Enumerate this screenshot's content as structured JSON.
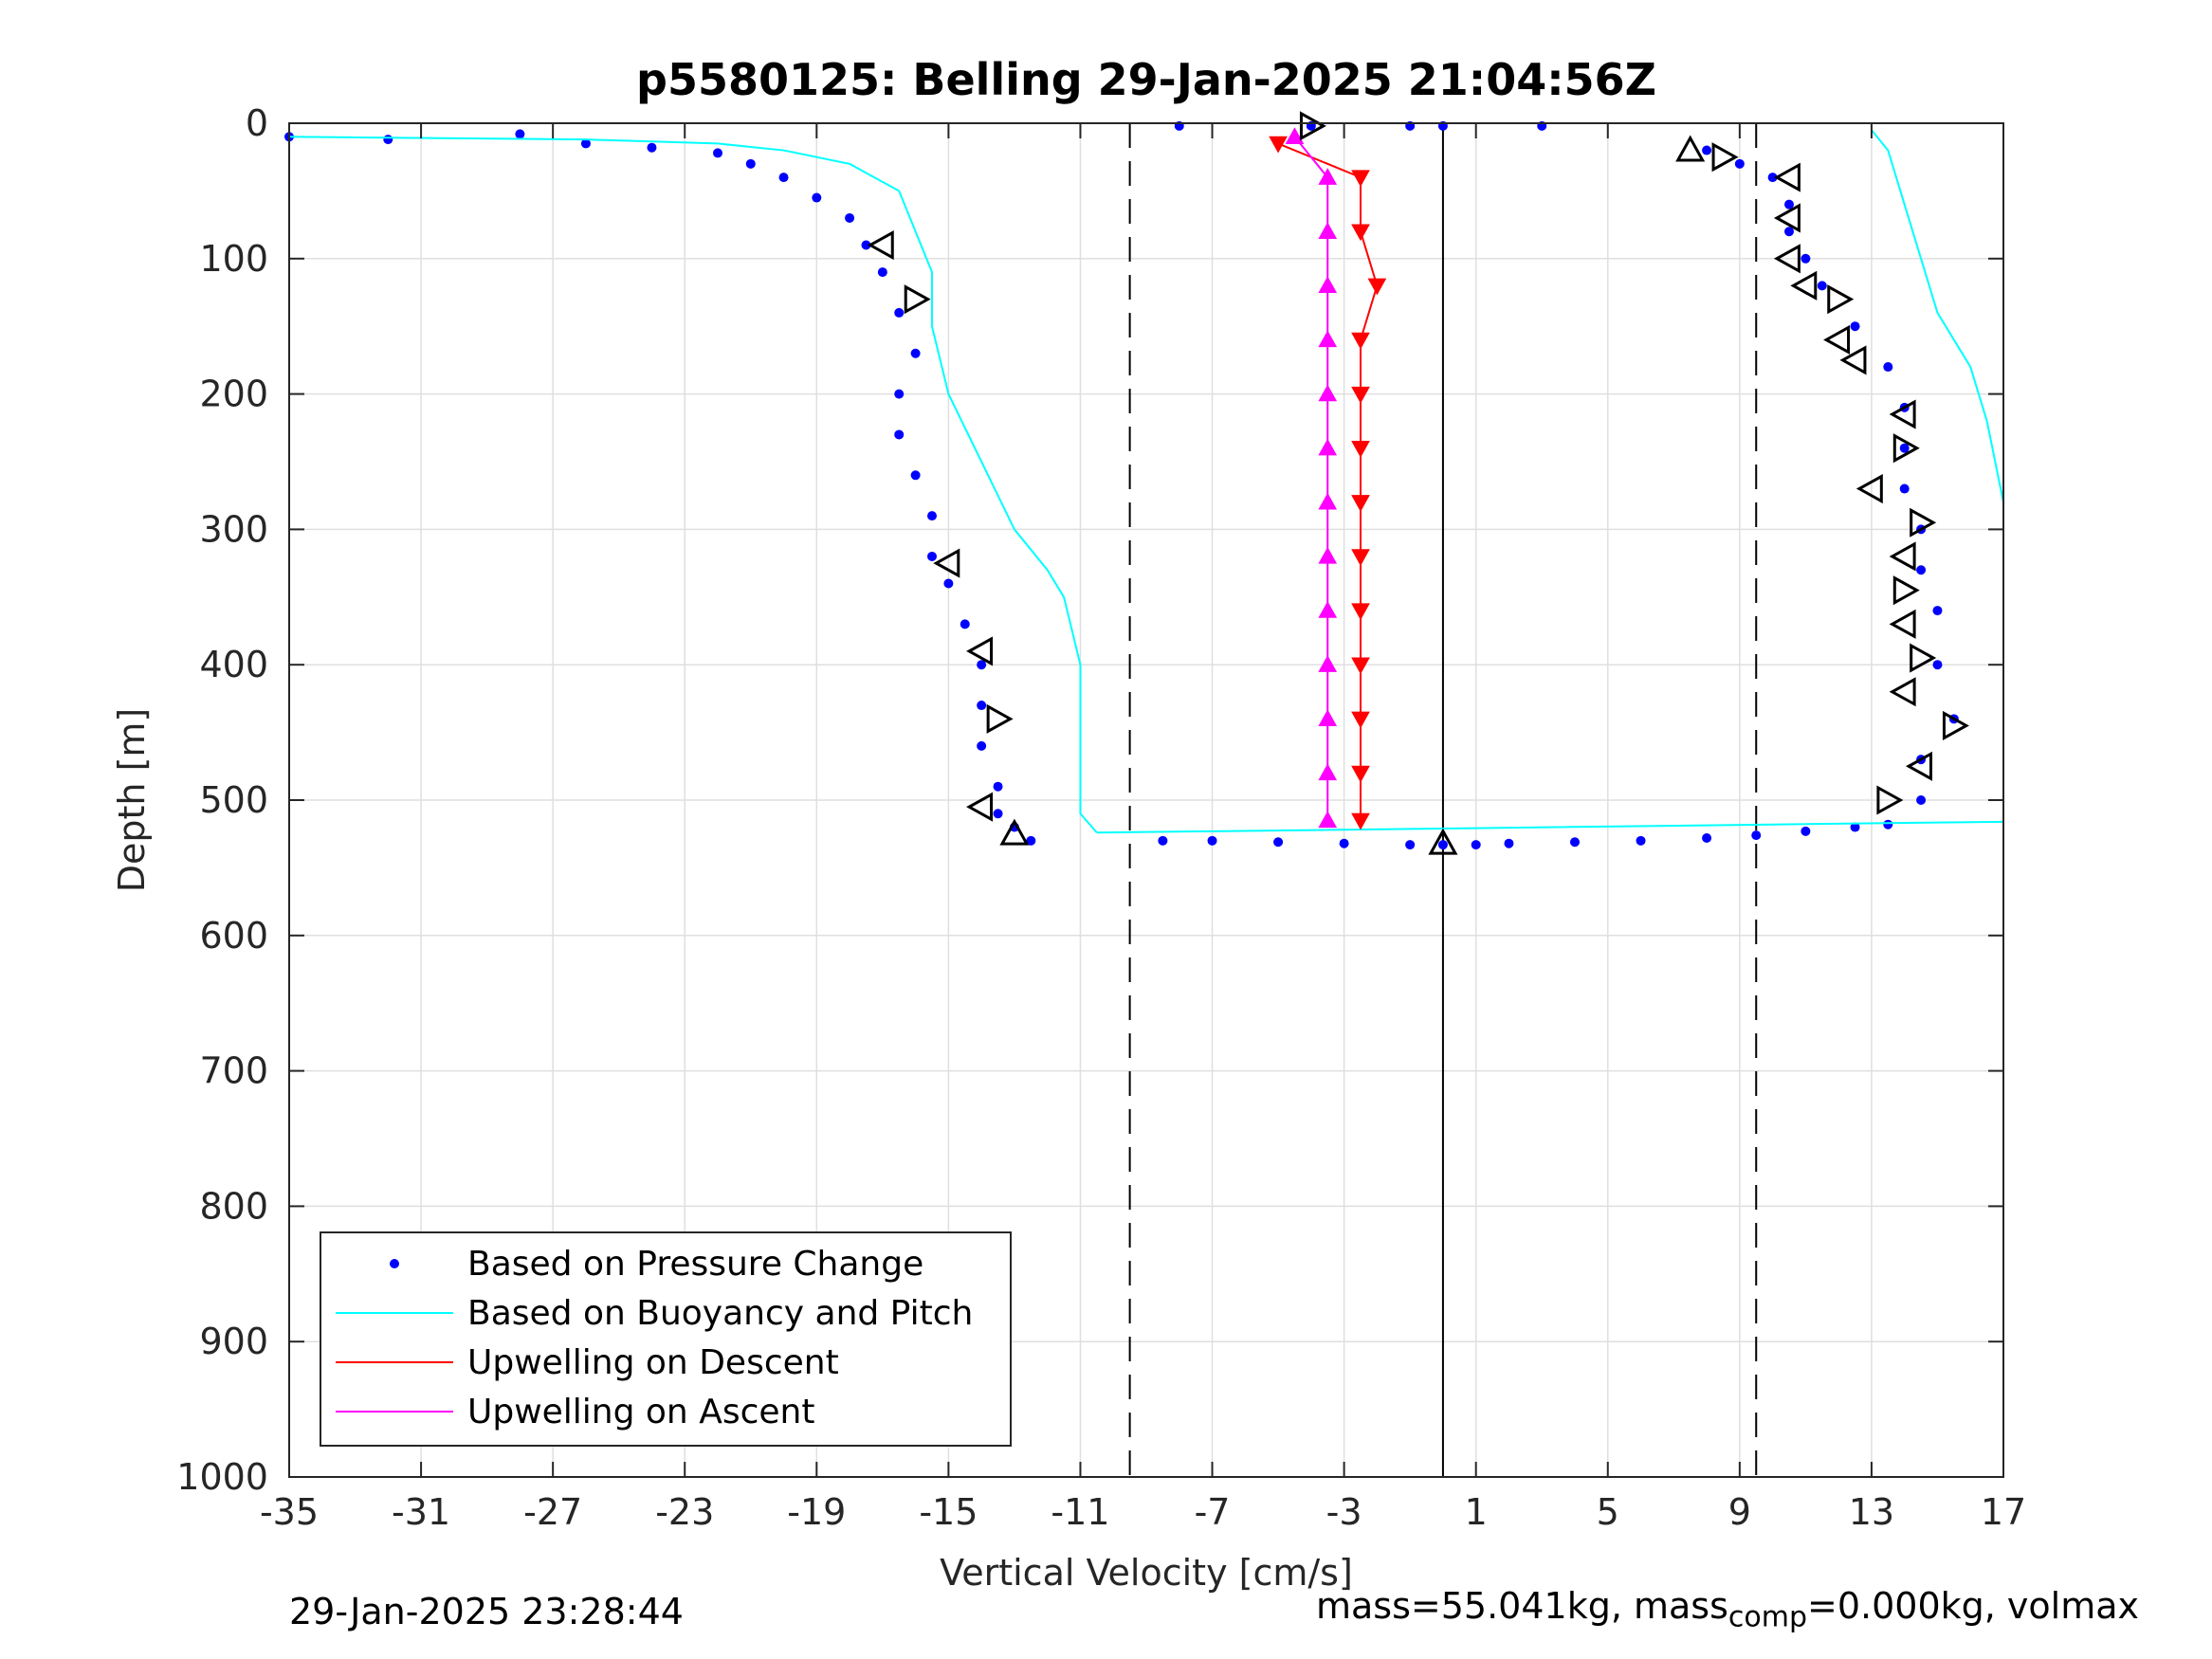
{
  "chart_data": {
    "type": "scatter",
    "title": "p5580125: Belling 29-Jan-2025 21:04:56Z",
    "xlabel": "Vertical Velocity [cm/s]",
    "ylabel": "Depth [m]",
    "xlim": [
      -35,
      17
    ],
    "ylim": [
      0,
      1000
    ],
    "y_reversed": true,
    "grid": true,
    "xticks": [
      -35,
      -31,
      -27,
      -23,
      -19,
      -15,
      -11,
      -7,
      -3,
      1,
      5,
      9,
      13,
      17
    ],
    "yticks": [
      0,
      100,
      200,
      300,
      400,
      500,
      600,
      700,
      800,
      900,
      1000
    ],
    "reference_lines": {
      "dashed": [
        -9.5,
        9.5
      ],
      "solid": [
        0
      ]
    },
    "legend": {
      "position": "bottom-left",
      "entries": [
        "Based on Pressure Change",
        "Based on Buoyancy and Pitch",
        "Upwelling on Descent",
        "Upwelling on Ascent"
      ]
    },
    "series": [
      {
        "name": "Based on Pressure Change",
        "marker": "dot",
        "color": "#0000ff",
        "segments": [
          {
            "x": [
              -35,
              -32,
              -28,
              -26,
              -24,
              -22,
              -21,
              -20,
              -19,
              -18,
              -17.5,
              -17,
              -16.5,
              -16,
              -16.5,
              -16.5,
              -16,
              -15.5,
              -15.5,
              -15,
              -14.5,
              -14,
              -14,
              -14,
              -13.5,
              -13.5,
              -13,
              -12.5
            ],
            "y": [
              10,
              12,
              8,
              15,
              18,
              22,
              30,
              40,
              55,
              70,
              90,
              110,
              140,
              170,
              200,
              230,
              260,
              290,
              320,
              340,
              370,
              400,
              430,
              460,
              490,
              510,
              520,
              530
            ]
          },
          {
            "x": [
              -8.5,
              -7,
              -5,
              -3,
              -1,
              0,
              1,
              2,
              4,
              6,
              8,
              9.5,
              11,
              12.5,
              13.5
            ],
            "y": [
              530,
              530,
              531,
              532,
              533,
              533,
              533,
              532,
              531,
              530,
              528,
              526,
              523,
              520,
              518
            ]
          },
          {
            "x": [
              -8,
              -4,
              -1,
              0,
              3,
              8,
              9,
              10,
              10.5,
              10.5,
              11,
              11.5,
              12.5,
              13.5,
              14,
              14,
              14,
              14.5,
              14.5,
              15,
              15,
              15.5,
              14.5,
              14.5
            ],
            "y": [
              2,
              2,
              2,
              2,
              2,
              20,
              30,
              40,
              60,
              80,
              100,
              120,
              150,
              180,
              210,
              240,
              270,
              300,
              330,
              360,
              400,
              440,
              470,
              500
            ]
          }
        ]
      },
      {
        "name": "Based on Buoyancy and Pitch",
        "line": true,
        "color": "#00ffff",
        "segments": [
          {
            "x": [
              -35,
              -26,
              -22,
              -20,
              -18,
              -16.5,
              -16,
              -15.5,
              -15.5,
              -15,
              -14,
              -13,
              -12,
              -11.5,
              -11,
              -11,
              -11,
              -11,
              -10.5
            ],
            "y": [
              10,
              12,
              15,
              20,
              30,
              50,
              80,
              110,
              150,
              200,
              250,
              300,
              330,
              350,
              400,
              440,
              480,
              510,
              524
            ]
          },
          {
            "x": [
              -10.5,
              0,
              10,
              17
            ],
            "y": [
              524,
              521,
              518,
              516
            ]
          },
          {
            "x": [
              13,
              13.5,
              14,
              14.5,
              15,
              16,
              16.5,
              17,
              17
            ],
            "y": [
              5,
              20,
              60,
              100,
              140,
              180,
              220,
              280,
              320
            ]
          }
        ]
      },
      {
        "name": "Upwelling on Descent",
        "marker": "triangle-down",
        "line": true,
        "color": "#ff0000",
        "x": [
          -5,
          -2.5,
          -2.5,
          -2,
          -2.5,
          -2.5,
          -2.5,
          -2.5,
          -2.5,
          -2.5,
          -2.5,
          -2.5,
          -2.5,
          -2.5
        ],
        "y": [
          15,
          40,
          80,
          120,
          160,
          200,
          240,
          280,
          320,
          360,
          400,
          440,
          480,
          515
        ]
      },
      {
        "name": "Upwelling on Ascent",
        "marker": "triangle-up",
        "line": true,
        "color": "#ff00ff",
        "x": [
          -4.5,
          -3.5,
          -3.5,
          -3.5,
          -3.5,
          -3.5,
          -3.5,
          -3.5,
          -3.5,
          -3.5,
          -3.5,
          -3.5,
          -3.5,
          -3.5
        ],
        "y": [
          10,
          40,
          80,
          120,
          160,
          200,
          240,
          280,
          320,
          360,
          400,
          440,
          480,
          515
        ]
      }
    ],
    "pitch_markers": {
      "color": "#000000",
      "points": [
        {
          "x": -17,
          "y": 90,
          "dir": "left"
        },
        {
          "x": -16,
          "y": 130,
          "dir": "right"
        },
        {
          "x": -15,
          "y": 325,
          "dir": "left"
        },
        {
          "x": -14,
          "y": 390,
          "dir": "left"
        },
        {
          "x": -13.5,
          "y": 440,
          "dir": "right"
        },
        {
          "x": -14,
          "y": 505,
          "dir": "left"
        },
        {
          "x": -13,
          "y": 525,
          "dir": "up"
        },
        {
          "x": -4,
          "y": 2,
          "dir": "right"
        },
        {
          "x": 0,
          "y": 532,
          "dir": "up"
        },
        {
          "x": 7.5,
          "y": 20,
          "dir": "up"
        },
        {
          "x": 8.5,
          "y": 25,
          "dir": "right"
        },
        {
          "x": 10.5,
          "y": 40,
          "dir": "left"
        },
        {
          "x": 10.5,
          "y": 70,
          "dir": "left"
        },
        {
          "x": 10.5,
          "y": 100,
          "dir": "left"
        },
        {
          "x": 11,
          "y": 120,
          "dir": "left"
        },
        {
          "x": 12,
          "y": 130,
          "dir": "right"
        },
        {
          "x": 12,
          "y": 160,
          "dir": "left"
        },
        {
          "x": 12.5,
          "y": 175,
          "dir": "left"
        },
        {
          "x": 14,
          "y": 215,
          "dir": "left"
        },
        {
          "x": 14,
          "y": 240,
          "dir": "right"
        },
        {
          "x": 13,
          "y": 270,
          "dir": "left"
        },
        {
          "x": 14.5,
          "y": 295,
          "dir": "right"
        },
        {
          "x": 14,
          "y": 320,
          "dir": "left"
        },
        {
          "x": 14,
          "y": 345,
          "dir": "right"
        },
        {
          "x": 14,
          "y": 370,
          "dir": "left"
        },
        {
          "x": 14.5,
          "y": 395,
          "dir": "right"
        },
        {
          "x": 14,
          "y": 420,
          "dir": "left"
        },
        {
          "x": 15.5,
          "y": 445,
          "dir": "right"
        },
        {
          "x": 14.5,
          "y": 475,
          "dir": "left"
        },
        {
          "x": 13.5,
          "y": 500,
          "dir": "right"
        }
      ]
    }
  },
  "footer": {
    "timestamp": "29-Jan-2025 23:28:44",
    "mass_prefix": "mass=55.041kg, mass",
    "mass_sub": "comp",
    "mass_suffix": "=0.000kg, volmax"
  }
}
